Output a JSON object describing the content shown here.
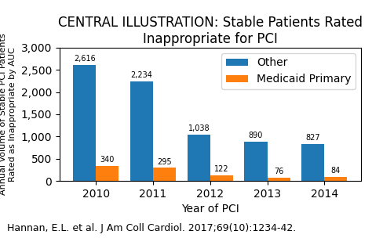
{
  "chart_data": {
    "type": "bar",
    "title": "CENTRAL ILLUSTRATION: Stable Patients Rated Inappropriate for PCI",
    "xlabel": "Year of PCI",
    "ylabel": "Annual Volume of Stable PCI Patients\nRated as Inappropriate by AUC",
    "annotations": [
      "Hannan, E.L. et al. J Am Coll Cardiol. 2017;69(10):1234-42."
    ],
    "categories": [
      "2010",
      "2011",
      "2012",
      "2013",
      "2014"
    ],
    "series": [
      {
        "name": "Other",
        "values": [
          2616,
          2234,
          1038,
          890,
          827
        ],
        "value_labels": [
          "2,616",
          "2,234",
          "1,038",
          "890",
          "827"
        ]
      },
      {
        "name": "Medicaid Primary",
        "values": [
          340,
          295,
          122,
          76,
          84
        ]
      }
    ],
    "ylim": [
      0,
      3000
    ],
    "yticks": [
      0,
      500,
      {
        "value": 1000,
        "label": "1,000"
      },
      {
        "value": 1500,
        "label": "1,500"
      },
      {
        "value": 2000,
        "label": "2,000"
      },
      {
        "value": 2500,
        "label": "2,500"
      },
      {
        "value": 3000,
        "label": "3,000"
      }
    ],
    "data_labels": true,
    "legend": "upper right",
    "grid": false
  }
}
